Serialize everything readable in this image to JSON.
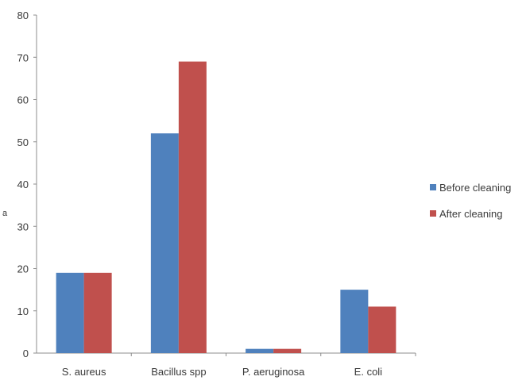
{
  "chart_data": {
    "type": "bar",
    "categories": [
      "S. aureus",
      "Bacillus spp",
      "P. aeruginosa",
      "E. coli"
    ],
    "series": [
      {
        "name": "Before cleaning",
        "values": [
          19,
          52,
          1,
          15
        ],
        "color": "#4f81bd"
      },
      {
        "name": "After cleaning",
        "values": [
          19,
          69,
          1,
          11
        ],
        "color": "#c0504d"
      }
    ],
    "ylim": [
      0,
      80
    ],
    "yticks": [
      0,
      10,
      20,
      30,
      40,
      50,
      60,
      70,
      80
    ],
    "ylabel": "a",
    "xlabel": "",
    "title": "",
    "grid": false,
    "legend_position": "right"
  }
}
